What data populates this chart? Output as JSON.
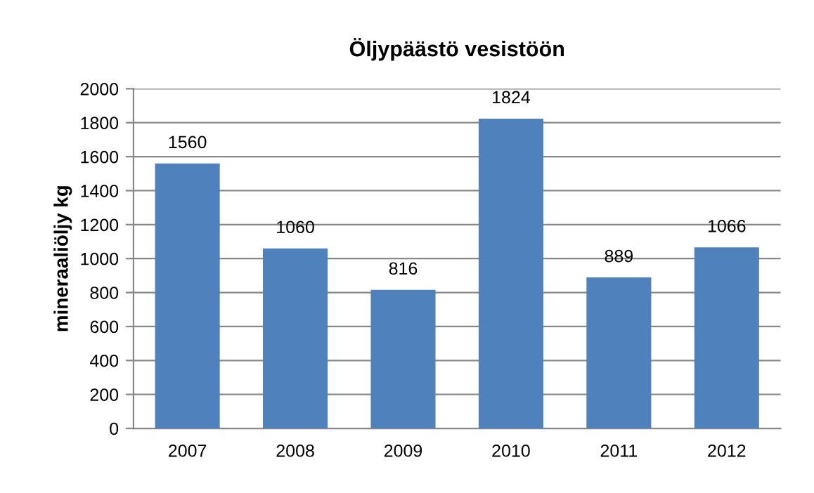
{
  "chart_data": {
    "type": "bar",
    "title": "Öljypäästö vesistöön",
    "ylabel": "mineraaliöljy kg",
    "categories": [
      "2007",
      "2008",
      "2009",
      "2010",
      "2011",
      "2012"
    ],
    "values": [
      1560,
      1060,
      816,
      1824,
      889,
      1066
    ],
    "color": "#4f81bd",
    "ylim": [
      0,
      2000
    ],
    "yticks": [
      0,
      200,
      400,
      600,
      800,
      1000,
      1200,
      1400,
      1600,
      1800,
      2000
    ],
    "grid": "y",
    "data_labels": true
  }
}
